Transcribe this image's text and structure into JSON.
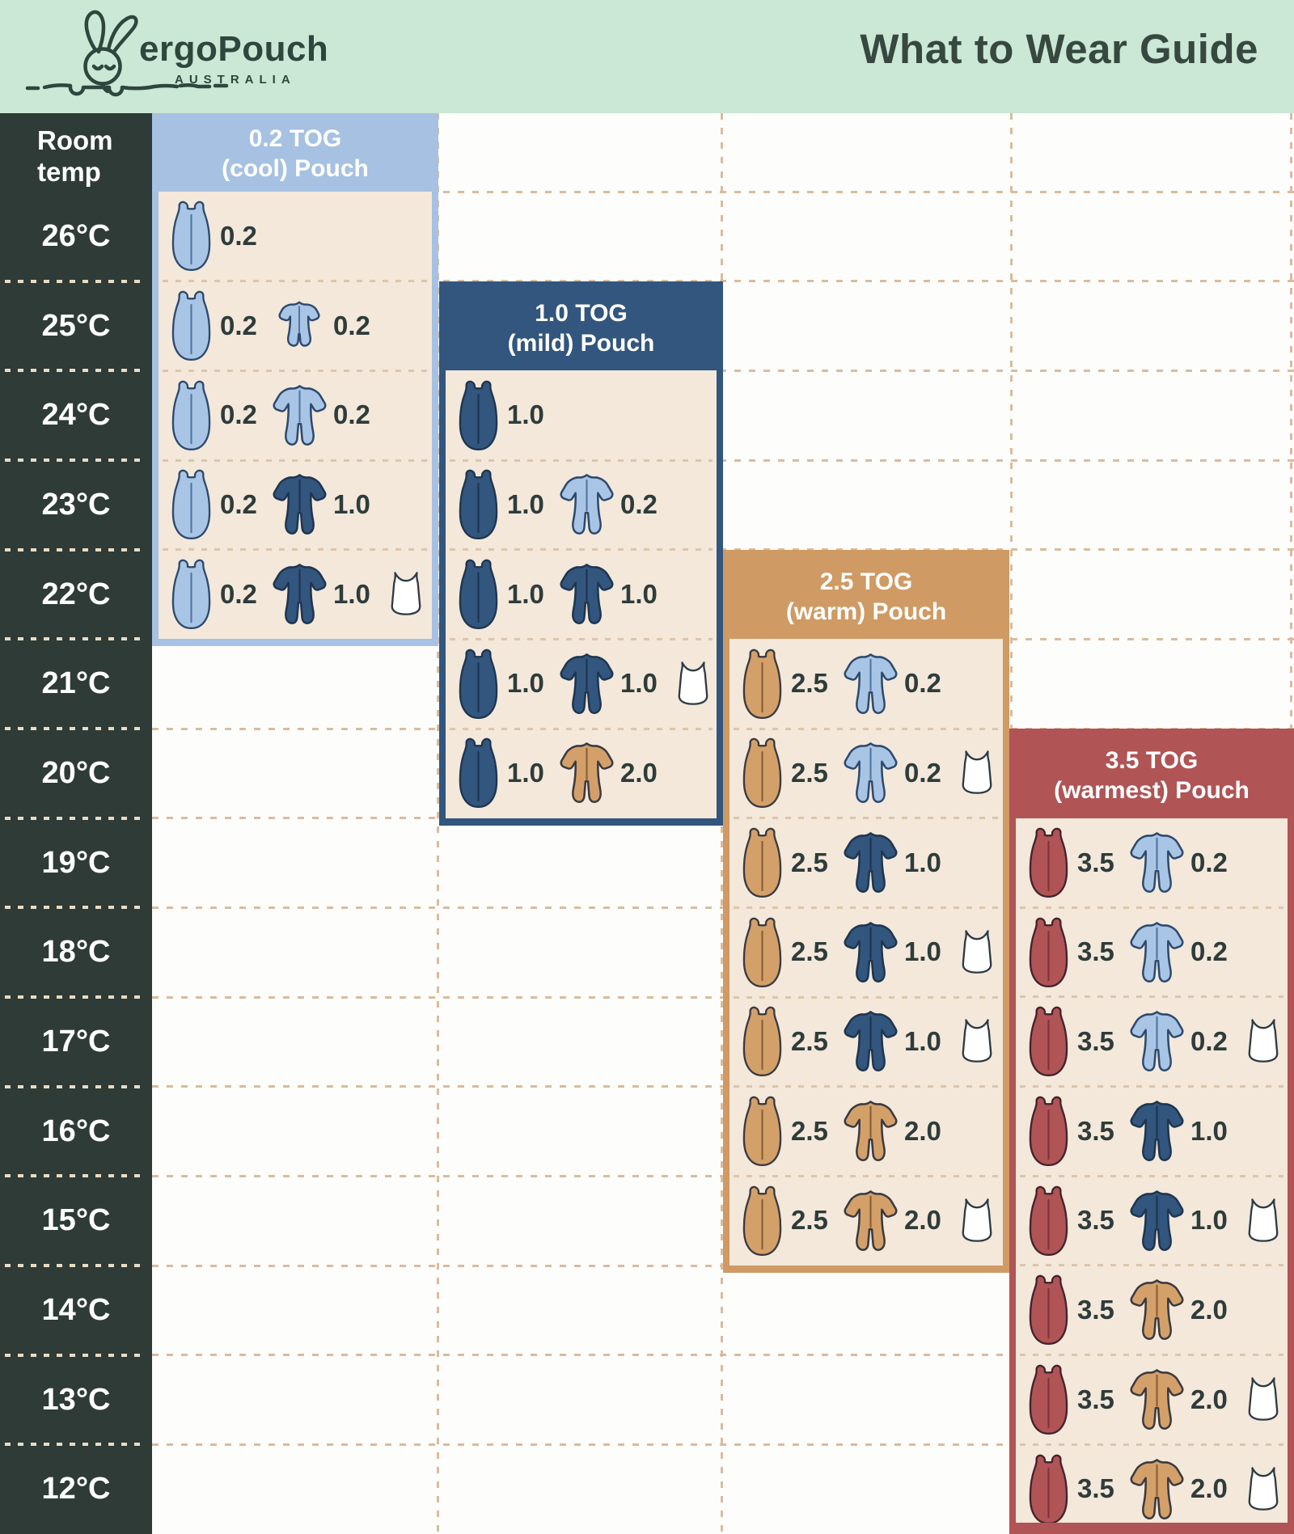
{
  "header": {
    "title": "What to Wear Guide"
  },
  "brand": {
    "name": "ergoPouch",
    "country": "AUSTRALIA",
    "logo_icon": "sleeping-bunny-icon"
  },
  "temp_column": {
    "header_line1": "Room",
    "header_line2": "temp",
    "temps": [
      "26°C",
      "25°C",
      "24°C",
      "23°C",
      "22°C",
      "21°C",
      "20°C",
      "19°C",
      "18°C",
      "17°C",
      "16°C",
      "15°C",
      "14°C",
      "13°C",
      "12°C"
    ]
  },
  "colors": {
    "mint": "#cbe7d5",
    "dark_column": "#2e3b37",
    "title_text": "#36483f",
    "cream": "#f3e8da",
    "label_text": "#2e3c3b",
    "light_blue": "#a6c1e1",
    "light_blue_fill": "#a9c5e6",
    "navy": "#32567d",
    "tan": "#cf9a63",
    "tan_fill": "#d4a06a",
    "maroon": "#b05455",
    "white": "#ffffff",
    "dash_background": "#d9bc9c",
    "dash_panel": "#dcc5aa",
    "dash_dark_column": "#e9dcc3"
  },
  "chart_data": {
    "type": "table",
    "title": "What to Wear Guide",
    "row_axis_label": "Room temp",
    "temps": [
      "26°C",
      "25°C",
      "24°C",
      "23°C",
      "22°C",
      "21°C",
      "20°C",
      "19°C",
      "18°C",
      "17°C",
      "16°C",
      "15°C",
      "14°C",
      "13°C",
      "12°C"
    ],
    "tog_colors": {
      "0.2": "light_blue",
      "1.0": "navy",
      "2.0": "tan",
      "2.5": "tan",
      "3.5": "maroon"
    },
    "icons": [
      "sleeping-bag-pouch",
      "romper",
      "short-sleeve-romper",
      "singlet"
    ],
    "panels": [
      {
        "id": "tog-0-2",
        "tog": "0.2",
        "name": "cool",
        "title_line1": "0.2 TOG",
        "title_line2": "(cool) Pouch",
        "color": "light_blue",
        "rows": [
          {
            "temp": "26°C",
            "pouch": "0.2",
            "garment": null,
            "garment_style": null,
            "singlet": false
          },
          {
            "temp": "25°C",
            "pouch": "0.2",
            "garment": "0.2",
            "garment_style": "short",
            "singlet": false
          },
          {
            "temp": "24°C",
            "pouch": "0.2",
            "garment": "0.2",
            "garment_style": "long",
            "singlet": false
          },
          {
            "temp": "23°C",
            "pouch": "0.2",
            "garment": "1.0",
            "garment_style": "long",
            "singlet": false
          },
          {
            "temp": "22°C",
            "pouch": "0.2",
            "garment": "1.0",
            "garment_style": "long",
            "singlet": true
          }
        ]
      },
      {
        "id": "tog-1-0",
        "tog": "1.0",
        "name": "mild",
        "title_line1": "1.0 TOG",
        "title_line2": "(mild) Pouch",
        "color": "navy",
        "rows": [
          {
            "temp": "24°C",
            "pouch": "1.0",
            "garment": null,
            "garment_style": null,
            "singlet": false
          },
          {
            "temp": "23°C",
            "pouch": "1.0",
            "garment": "0.2",
            "garment_style": "long",
            "singlet": false
          },
          {
            "temp": "22°C",
            "pouch": "1.0",
            "garment": "1.0",
            "garment_style": "long",
            "singlet": false
          },
          {
            "temp": "21°C",
            "pouch": "1.0",
            "garment": "1.0",
            "garment_style": "long",
            "singlet": true
          },
          {
            "temp": "20°C",
            "pouch": "1.0",
            "garment": "2.0",
            "garment_style": "long",
            "singlet": false
          }
        ]
      },
      {
        "id": "tog-2-5",
        "tog": "2.5",
        "name": "warm",
        "title_line1": "2.5 TOG",
        "title_line2": "(warm) Pouch",
        "color": "tan",
        "rows": [
          {
            "temp": "21°C",
            "pouch": "2.5",
            "garment": "0.2",
            "garment_style": "long",
            "singlet": false
          },
          {
            "temp": "20°C",
            "pouch": "2.5",
            "garment": "0.2",
            "garment_style": "long",
            "singlet": true
          },
          {
            "temp": "19°C",
            "pouch": "2.5",
            "garment": "1.0",
            "garment_style": "long",
            "singlet": false
          },
          {
            "temp": "18°C",
            "pouch": "2.5",
            "garment": "1.0",
            "garment_style": "long",
            "singlet": true
          },
          {
            "temp": "17°C",
            "pouch": "2.5",
            "garment": "1.0",
            "garment_style": "long",
            "singlet": true
          },
          {
            "temp": "16°C",
            "pouch": "2.5",
            "garment": "2.0",
            "garment_style": "long",
            "singlet": false
          },
          {
            "temp": "15°C",
            "pouch": "2.5",
            "garment": "2.0",
            "garment_style": "long",
            "singlet": true
          }
        ]
      },
      {
        "id": "tog-3-5",
        "tog": "3.5",
        "name": "warmest",
        "title_line1": "3.5 TOG",
        "title_line2": "(warmest) Pouch",
        "color": "maroon",
        "rows": [
          {
            "temp": "19°C",
            "pouch": "3.5",
            "garment": "0.2",
            "garment_style": "long",
            "singlet": false
          },
          {
            "temp": "18°C",
            "pouch": "3.5",
            "garment": "0.2",
            "garment_style": "long",
            "singlet": false
          },
          {
            "temp": "17°C",
            "pouch": "3.5",
            "garment": "0.2",
            "garment_style": "long",
            "singlet": true
          },
          {
            "temp": "16°C",
            "pouch": "3.5",
            "garment": "1.0",
            "garment_style": "long",
            "singlet": false
          },
          {
            "temp": "15°C",
            "pouch": "3.5",
            "garment": "1.0",
            "garment_style": "long",
            "singlet": true
          },
          {
            "temp": "14°C",
            "pouch": "3.5",
            "garment": "2.0",
            "garment_style": "long",
            "singlet": false
          },
          {
            "temp": "13°C",
            "pouch": "3.5",
            "garment": "2.0",
            "garment_style": "long",
            "singlet": true
          },
          {
            "temp": "12°C",
            "pouch": "3.5",
            "garment": "2.0",
            "garment_style": "long",
            "singlet": true
          }
        ]
      }
    ]
  }
}
